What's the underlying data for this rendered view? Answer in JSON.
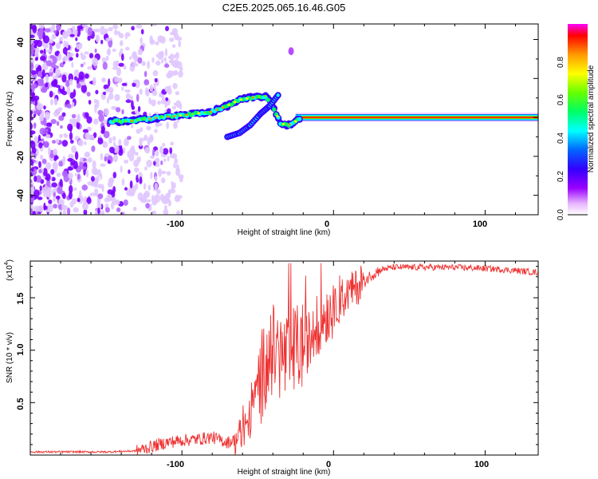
{
  "figure_title": "C2E5.2025.065.16.46.G05",
  "chart_data": [
    {
      "type": "heatmap",
      "title": "",
      "xlabel": "Height of straight line (km)",
      "ylabel": "Frequency (Hz)",
      "xlim": [
        -200,
        135
      ],
      "ylim": [
        -50,
        48
      ],
      "x_ticks": [
        "-100",
        "0",
        "100"
      ],
      "y_ticks": [
        "40",
        "20",
        "0",
        "-20",
        "-40"
      ],
      "colorbar": {
        "label": "Normalized spectral amplitude",
        "range": [
          0,
          1
        ],
        "ticks": [
          "0.0",
          "0.2",
          "0.4",
          "0.6",
          "0.8"
        ],
        "colormap": [
          "#ffffff",
          "#e6b3ff",
          "#9900ff",
          "#3300ff",
          "#0066ff",
          "#00ffff",
          "#00ff66",
          "#66ff00",
          "#ffff00",
          "#ff9900",
          "#ff0000",
          "#ff00ff"
        ]
      },
      "ridge": {
        "description_points_x": [
          -147,
          -135,
          -125,
          -115,
          -100,
          -90,
          -80,
          -70,
          -62,
          -55,
          -45,
          -40,
          -35,
          -30,
          -20,
          -10,
          0,
          10,
          20,
          40,
          60,
          80,
          100,
          120,
          135
        ],
        "description_points_y": [
          -2,
          -2,
          -1,
          0,
          1,
          2,
          3,
          6,
          9,
          10,
          11,
          6,
          -3,
          -4,
          0,
          0,
          0,
          0,
          0,
          0,
          0,
          0,
          0,
          0,
          0
        ]
      },
      "branch_points": [
        [
          -70,
          -10
        ],
        [
          -62,
          -8
        ],
        [
          -55,
          -4
        ],
        [
          -48,
          2
        ],
        [
          -42,
          6
        ],
        [
          -36,
          12
        ]
      ],
      "isolated_blob": [
        -28,
        34
      ]
    },
    {
      "type": "line",
      "title": "",
      "xlabel": "Height of straight line (km)",
      "ylabel": "SNR (10 * v/v)",
      "multiplier_label": "(x10",
      "multiplier_exp": "4",
      "xlim": [
        -200,
        135
      ],
      "ylim": [
        0,
        1.85
      ],
      "x_ticks": [
        "-100",
        "0",
        "100"
      ],
      "y_ticks": [
        "0.5",
        "1.0",
        "1.5"
      ],
      "series_color": "#ee3333",
      "envelope_x": [
        -200,
        -150,
        -130,
        -120,
        -110,
        -100,
        -90,
        -80,
        -70,
        -60,
        -55,
        -50,
        -45,
        -40,
        -35,
        -30,
        -25,
        -20,
        -15,
        -10,
        -5,
        0,
        5,
        10,
        15,
        20,
        25,
        30,
        35,
        40,
        60,
        80,
        100,
        120,
        135
      ],
      "envelope_y": [
        0.03,
        0.03,
        0.04,
        0.08,
        0.12,
        0.14,
        0.15,
        0.17,
        0.12,
        0.18,
        0.35,
        0.65,
        0.85,
        1.0,
        0.95,
        0.9,
        1.0,
        1.05,
        1.1,
        1.25,
        1.35,
        1.4,
        1.45,
        1.55,
        1.6,
        1.65,
        1.72,
        1.76,
        1.78,
        1.79,
        1.79,
        1.79,
        1.78,
        1.76,
        1.74
      ]
    }
  ]
}
